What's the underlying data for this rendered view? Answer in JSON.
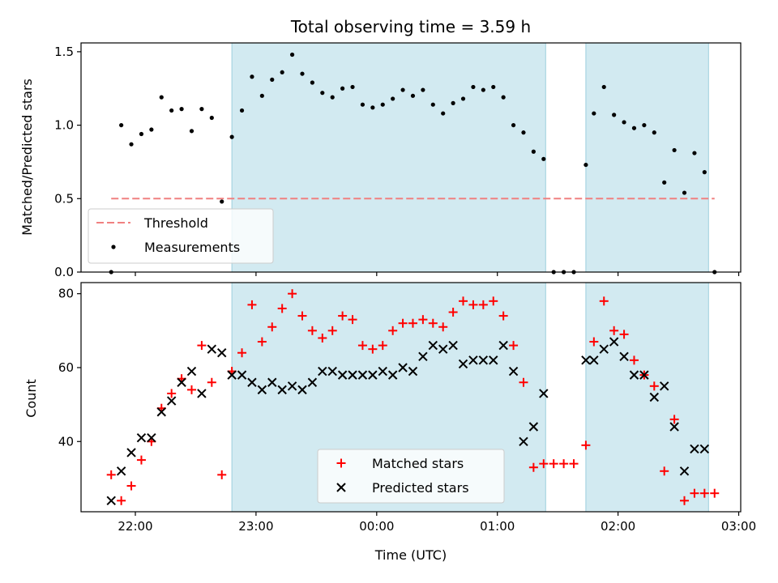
{
  "chart_data": [
    {
      "type": "scatter",
      "title": "Total observing time = 3.59 h",
      "ylabel": "Matched/Predicted stars",
      "xlabel": "",
      "ylim": [
        0,
        1.56
      ],
      "yticks": [
        0,
        0.5,
        1.0,
        1.5
      ],
      "ytick_labels": [
        "0.0",
        "0.5",
        "1.0",
        "1.5"
      ],
      "grid": false,
      "legend_position": "lower-left",
      "shaded_intervals": [
        [
          "22:48",
          "01:24"
        ],
        [
          "01:44",
          "02:45"
        ]
      ],
      "shade_color": "#add8e6",
      "threshold": {
        "name": "Threshold",
        "y": 0.5,
        "x_range": [
          "21:48",
          "02:48"
        ],
        "color": "#f08080",
        "style": "dashed"
      },
      "series": [
        {
          "name": "Measurements",
          "color": "#000000",
          "marker": "dot",
          "x": [
            "21:48",
            "21:53",
            "21:58",
            "22:03",
            "22:08",
            "22:13",
            "22:18",
            "22:23",
            "22:28",
            "22:33",
            "22:38",
            "22:43",
            "22:48",
            "22:53",
            "22:58",
            "23:03",
            "23:08",
            "23:13",
            "23:18",
            "23:23",
            "23:28",
            "23:33",
            "23:38",
            "23:43",
            "23:48",
            "23:53",
            "23:58",
            "00:03",
            "00:08",
            "00:13",
            "00:18",
            "00:23",
            "00:28",
            "00:33",
            "00:38",
            "00:43",
            "00:48",
            "00:53",
            "00:58",
            "01:03",
            "01:08",
            "01:13",
            "01:18",
            "01:23",
            "01:28",
            "01:33",
            "01:38",
            "01:44",
            "01:48",
            "01:53",
            "01:58",
            "02:03",
            "02:08",
            "02:13",
            "02:18",
            "02:23",
            "02:28",
            "02:33",
            "02:38",
            "02:43",
            "02:48"
          ],
          "y": [
            0.0,
            1.0,
            0.87,
            0.94,
            0.97,
            1.19,
            1.1,
            1.11,
            0.96,
            1.11,
            1.05,
            0.48,
            0.92,
            1.1,
            1.33,
            1.2,
            1.31,
            1.36,
            1.48,
            1.35,
            1.29,
            1.22,
            1.19,
            1.25,
            1.26,
            1.14,
            1.12,
            1.14,
            1.18,
            1.24,
            1.2,
            1.24,
            1.14,
            1.08,
            1.15,
            1.18,
            1.26,
            1.24,
            1.26,
            1.19,
            1.0,
            0.95,
            0.82,
            0.77,
            0.0,
            0.0,
            0.0,
            0.73,
            1.08,
            1.26,
            1.07,
            1.02,
            0.98,
            1.0,
            0.95,
            0.61,
            0.83,
            0.54,
            0.81,
            0.68,
            0.0
          ]
        }
      ]
    },
    {
      "type": "scatter",
      "title": "",
      "xlabel": "Time (UTC)",
      "ylabel": "Count",
      "ylim": [
        21,
        83
      ],
      "yticks": [
        40,
        60,
        80
      ],
      "ytick_labels": [
        "40",
        "60",
        "80"
      ],
      "xlim": [
        "21:33",
        "03:01"
      ],
      "xticks": [
        "22:00",
        "23:00",
        "00:00",
        "01:00",
        "02:00",
        "03:00"
      ],
      "grid": false,
      "legend_position": "lower-center",
      "shaded_intervals": [
        [
          "22:48",
          "01:24"
        ],
        [
          "01:44",
          "02:45"
        ]
      ],
      "series": [
        {
          "name": "Matched stars",
          "color": "#ff0000",
          "marker": "plus",
          "x": [
            "21:48",
            "21:53",
            "21:58",
            "22:03",
            "22:08",
            "22:13",
            "22:18",
            "22:23",
            "22:28",
            "22:33",
            "22:38",
            "22:43",
            "22:48",
            "22:53",
            "22:58",
            "23:03",
            "23:08",
            "23:13",
            "23:18",
            "23:23",
            "23:28",
            "23:33",
            "23:38",
            "23:43",
            "23:48",
            "23:53",
            "23:58",
            "00:03",
            "00:08",
            "00:13",
            "00:18",
            "00:23",
            "00:28",
            "00:33",
            "00:38",
            "00:43",
            "00:48",
            "00:53",
            "00:58",
            "01:03",
            "01:08",
            "01:13",
            "01:18",
            "01:23",
            "01:28",
            "01:33",
            "01:38",
            "01:44",
            "01:48",
            "01:53",
            "01:58",
            "02:03",
            "02:08",
            "02:13",
            "02:18",
            "02:23",
            "02:28",
            "02:33",
            "02:38",
            "02:43",
            "02:48"
          ],
          "y": [
            31,
            24,
            28,
            35,
            40,
            49,
            53,
            57,
            54,
            66,
            56,
            31,
            59,
            64,
            77,
            67,
            71,
            76,
            80,
            74,
            70,
            68,
            70,
            74,
            73,
            66,
            65,
            66,
            70,
            72,
            72,
            73,
            72,
            71,
            75,
            78,
            77,
            77,
            78,
            74,
            66,
            56,
            33,
            34,
            34,
            34,
            34,
            39,
            67,
            78,
            70,
            69,
            62,
            58,
            55,
            32,
            46,
            24,
            26,
            26,
            26
          ]
        },
        {
          "name": "Predicted stars",
          "color": "#000000",
          "marker": "x",
          "x": [
            "21:48",
            "21:53",
            "21:58",
            "22:03",
            "22:08",
            "22:13",
            "22:18",
            "22:23",
            "22:28",
            "22:33",
            "22:38",
            "22:43",
            "22:48",
            "22:53",
            "22:58",
            "23:03",
            "23:08",
            "23:13",
            "23:18",
            "23:23",
            "23:28",
            "23:33",
            "23:38",
            "23:43",
            "23:48",
            "23:53",
            "23:58",
            "00:03",
            "00:08",
            "00:13",
            "00:18",
            "00:23",
            "00:28",
            "00:33",
            "00:38",
            "00:43",
            "00:48",
            "00:53",
            "00:58",
            "01:03",
            "01:08",
            "01:13",
            "01:18",
            "01:23",
            "01:44",
            "01:48",
            "01:53",
            "01:58",
            "02:03",
            "02:08",
            "02:13",
            "02:18",
            "02:23",
            "02:28",
            "02:33",
            "02:38",
            "02:43"
          ],
          "y": [
            24,
            32,
            37,
            41,
            41,
            48,
            51,
            56,
            59,
            53,
            65,
            64,
            58,
            58,
            56,
            54,
            56,
            54,
            55,
            54,
            56,
            59,
            59,
            58,
            58,
            58,
            58,
            59,
            58,
            60,
            59,
            63,
            66,
            65,
            66,
            61,
            62,
            62,
            62,
            66,
            59,
            40,
            44,
            53,
            62,
            62,
            65,
            67,
            63,
            58,
            58,
            52,
            55,
            44,
            32,
            38,
            38
          ]
        }
      ]
    }
  ]
}
